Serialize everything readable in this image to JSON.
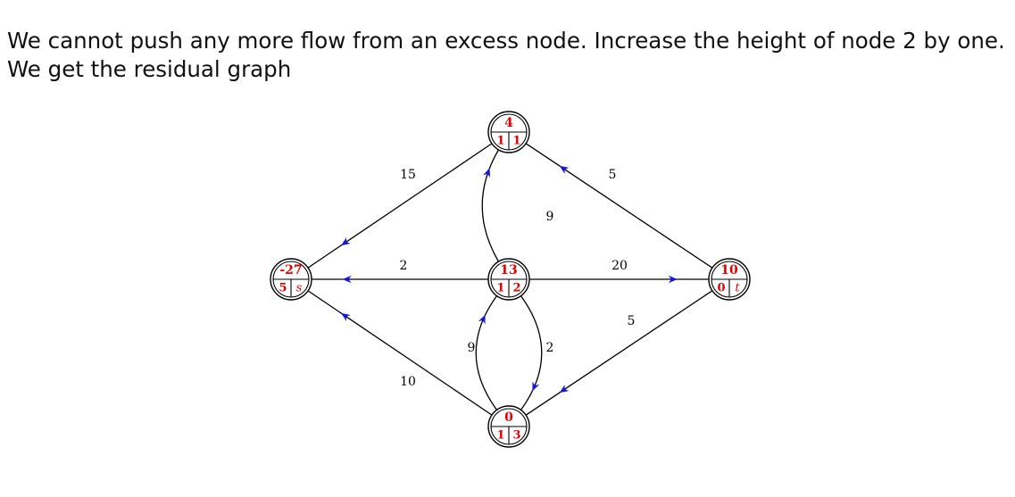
{
  "caption": {
    "line1": "We cannot push any more flow from an excess node. Increase the height of node 2 by one.",
    "line2": "We get the residual graph"
  },
  "colors": {
    "node_text": "#e00000",
    "arrow": "#1515e0",
    "line": "#000000"
  },
  "nodes": [
    {
      "key": "s",
      "excess": "-27",
      "height": "5",
      "id": "s",
      "id_italic": true
    },
    {
      "key": "n1",
      "excess": "4",
      "height": "1",
      "id": "1",
      "id_italic": false
    },
    {
      "key": "n2",
      "excess": "13",
      "height": "1",
      "id": "2",
      "id_italic": false
    },
    {
      "key": "n3",
      "excess": "0",
      "height": "1",
      "id": "3",
      "id_italic": false
    },
    {
      "key": "t",
      "excess": "10",
      "height": "0",
      "id": "t",
      "id_italic": true
    }
  ],
  "edges": [
    {
      "from": "n1",
      "to": "s",
      "capacity": "15"
    },
    {
      "from": "t",
      "to": "n1",
      "capacity": "5"
    },
    {
      "from": "n2",
      "to": "n1",
      "capacity": "9"
    },
    {
      "from": "n2",
      "to": "s",
      "capacity": "2"
    },
    {
      "from": "n2",
      "to": "t",
      "capacity": "20"
    },
    {
      "from": "t",
      "to": "n3",
      "capacity": "5"
    },
    {
      "from": "n2",
      "to": "n3",
      "capacity": "9"
    },
    {
      "from": "n3",
      "to": "n2",
      "capacity": "2"
    },
    {
      "from": "n3",
      "to": "s",
      "capacity": "10"
    }
  ]
}
